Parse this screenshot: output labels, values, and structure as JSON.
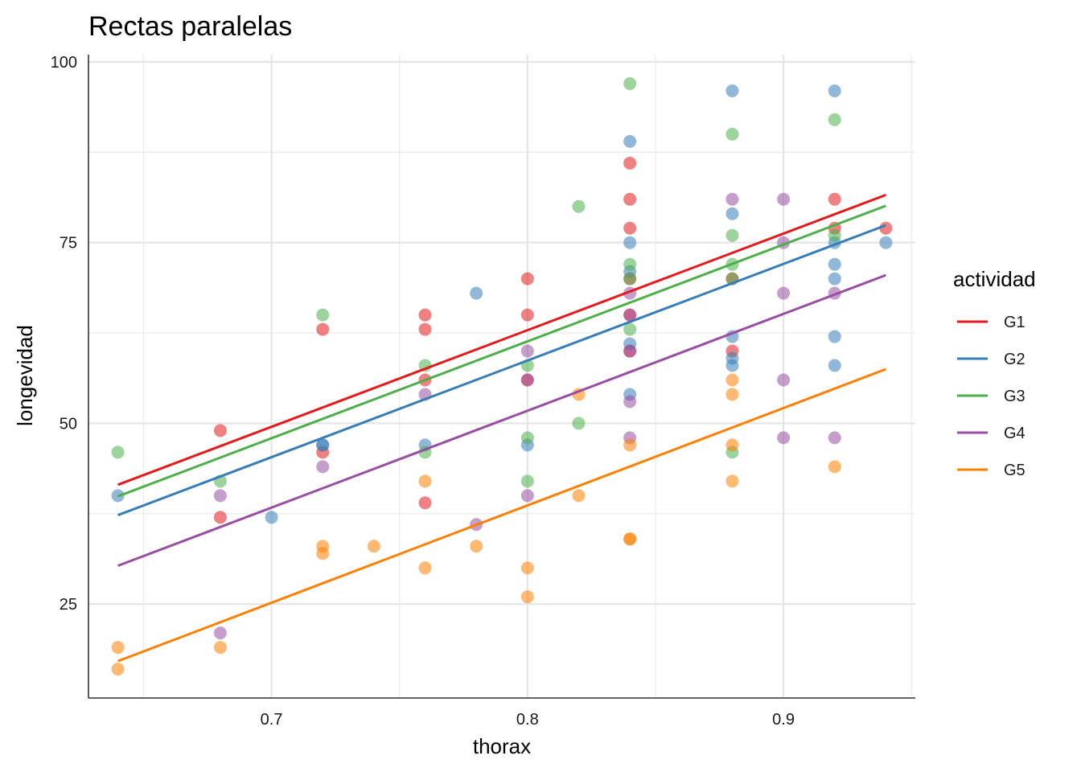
{
  "chart_data": {
    "type": "scatter",
    "title": "Rectas paralelas",
    "xlabel": "thorax",
    "ylabel": "longevidad",
    "xlim": [
      0.6285,
      0.9515
    ],
    "ylim": [
      12,
      101
    ],
    "xticks": [
      0.7,
      0.8,
      0.9
    ],
    "xtick_labels": [
      "0.7",
      "0.8",
      "0.9"
    ],
    "yticks": [
      25,
      50,
      75,
      100
    ],
    "ytick_labels": [
      "25",
      "50",
      "75",
      "100"
    ],
    "xminor": [
      0.65,
      0.75,
      0.85,
      0.95
    ],
    "yminor": [
      37.5,
      62.5,
      87.5
    ],
    "grid": true,
    "legend": {
      "title": "actividad",
      "position": "right"
    },
    "series": [
      {
        "name": "G1",
        "color": "#e41a1c",
        "fit": [
          0.64,
          41.5,
          0.94,
          81.6
        ],
        "points": [
          [
            0.68,
            49
          ],
          [
            0.68,
            37
          ],
          [
            0.72,
            63
          ],
          [
            0.72,
            46
          ],
          [
            0.76,
            65
          ],
          [
            0.76,
            63
          ],
          [
            0.76,
            56
          ],
          [
            0.76,
            39
          ],
          [
            0.8,
            70
          ],
          [
            0.8,
            65
          ],
          [
            0.8,
            56
          ],
          [
            0.84,
            86
          ],
          [
            0.84,
            81
          ],
          [
            0.84,
            77
          ],
          [
            0.84,
            70
          ],
          [
            0.84,
            65
          ],
          [
            0.84,
            60
          ],
          [
            0.88,
            70
          ],
          [
            0.88,
            60
          ],
          [
            0.92,
            81
          ],
          [
            0.92,
            77
          ],
          [
            0.94,
            77
          ]
        ]
      },
      {
        "name": "G2",
        "color": "#377eb8",
        "fit": [
          0.64,
          37.3,
          0.94,
          77.4
        ],
        "points": [
          [
            0.64,
            40
          ],
          [
            0.7,
            37
          ],
          [
            0.72,
            47
          ],
          [
            0.72,
            47
          ],
          [
            0.76,
            47
          ],
          [
            0.78,
            68
          ],
          [
            0.8,
            47
          ],
          [
            0.84,
            89
          ],
          [
            0.84,
            75
          ],
          [
            0.84,
            71
          ],
          [
            0.84,
            61
          ],
          [
            0.84,
            54
          ],
          [
            0.88,
            96
          ],
          [
            0.88,
            79
          ],
          [
            0.88,
            62
          ],
          [
            0.88,
            59
          ],
          [
            0.88,
            58
          ],
          [
            0.92,
            96
          ],
          [
            0.92,
            75
          ],
          [
            0.92,
            72
          ],
          [
            0.92,
            70
          ],
          [
            0.92,
            62
          ],
          [
            0.92,
            58
          ],
          [
            0.94,
            75
          ]
        ]
      },
      {
        "name": "G3",
        "color": "#4daf4a",
        "fit": [
          0.64,
          39.9,
          0.94,
          80.1
        ],
        "points": [
          [
            0.64,
            46
          ],
          [
            0.68,
            42
          ],
          [
            0.72,
            65
          ],
          [
            0.76,
            58
          ],
          [
            0.76,
            46
          ],
          [
            0.8,
            58
          ],
          [
            0.8,
            48
          ],
          [
            0.8,
            42
          ],
          [
            0.82,
            80
          ],
          [
            0.82,
            50
          ],
          [
            0.84,
            97
          ],
          [
            0.84,
            72
          ],
          [
            0.84,
            70
          ],
          [
            0.84,
            63
          ],
          [
            0.88,
            90
          ],
          [
            0.88,
            76
          ],
          [
            0.88,
            72
          ],
          [
            0.88,
            70
          ],
          [
            0.88,
            46
          ],
          [
            0.92,
            92
          ],
          [
            0.92,
            76
          ]
        ]
      },
      {
        "name": "G4",
        "color": "#984ea3",
        "fit": [
          0.64,
          30.3,
          0.94,
          70.5
        ],
        "points": [
          [
            0.68,
            40
          ],
          [
            0.68,
            21
          ],
          [
            0.72,
            44
          ],
          [
            0.76,
            54
          ],
          [
            0.78,
            36
          ],
          [
            0.8,
            60
          ],
          [
            0.8,
            56
          ],
          [
            0.8,
            40
          ],
          [
            0.84,
            68
          ],
          [
            0.84,
            65
          ],
          [
            0.84,
            60
          ],
          [
            0.84,
            53
          ],
          [
            0.84,
            48
          ],
          [
            0.88,
            81
          ],
          [
            0.9,
            81
          ],
          [
            0.9,
            75
          ],
          [
            0.9,
            68
          ],
          [
            0.9,
            56
          ],
          [
            0.9,
            48
          ],
          [
            0.92,
            68
          ],
          [
            0.92,
            48
          ]
        ]
      },
      {
        "name": "G5",
        "color": "#ff7f00",
        "fit": [
          0.64,
          17.1,
          0.94,
          57.5
        ],
        "points": [
          [
            0.64,
            19
          ],
          [
            0.64,
            16
          ],
          [
            0.68,
            19
          ],
          [
            0.72,
            33
          ],
          [
            0.72,
            32
          ],
          [
            0.74,
            33
          ],
          [
            0.76,
            42
          ],
          [
            0.76,
            30
          ],
          [
            0.78,
            33
          ],
          [
            0.8,
            30
          ],
          [
            0.8,
            26
          ],
          [
            0.82,
            54
          ],
          [
            0.82,
            40
          ],
          [
            0.84,
            47
          ],
          [
            0.84,
            34
          ],
          [
            0.84,
            34
          ],
          [
            0.88,
            56
          ],
          [
            0.88,
            54
          ],
          [
            0.88,
            47
          ],
          [
            0.88,
            42
          ],
          [
            0.92,
            44
          ]
        ]
      }
    ]
  }
}
